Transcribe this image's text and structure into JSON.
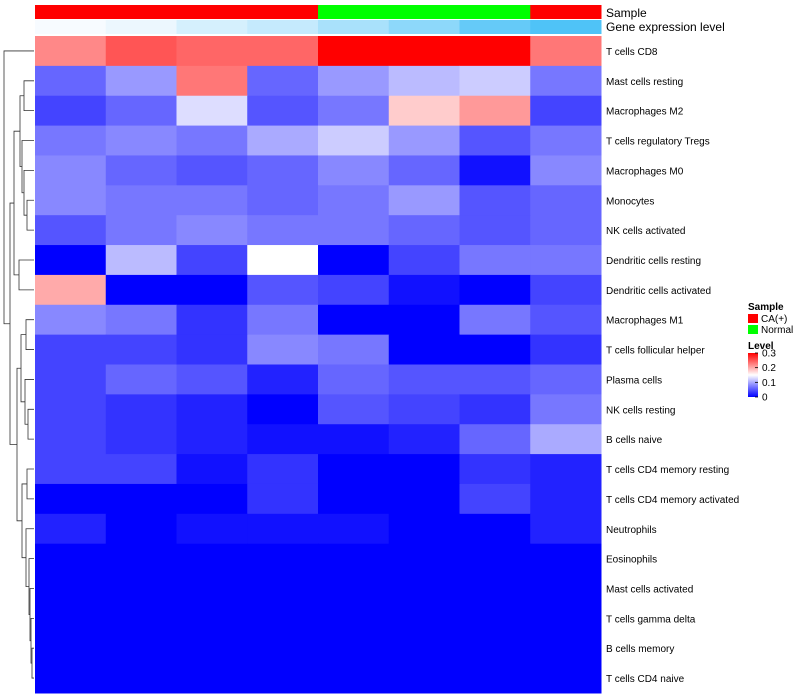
{
  "chart_data": {
    "type": "heatmap",
    "annotation_tracks": [
      {
        "name": "Sample",
        "values": [
          "CA(+)",
          "CA(+)",
          "CA(+)",
          "CA(+)",
          "Normal",
          "Normal",
          "Normal",
          "CA(+)"
        ]
      },
      {
        "name": "Gene expression level",
        "values": [
          0.0,
          0.02,
          0.06,
          0.09,
          0.14,
          0.19,
          0.26,
          0.3
        ]
      }
    ],
    "rows": [
      "T cells CD8",
      "Mast cells resting",
      "Macrophages M2",
      "T cells regulatory  Tregs",
      "Macrophages M0",
      "Monocytes",
      "NK cells activated",
      "Dendritic cells resting",
      "Dendritic cells activated",
      "Macrophages M1",
      "T cells follicular helper",
      "Plasma cells",
      "NK cells resting",
      "B cells naive",
      "T cells CD4 memory resting",
      "T cells CD4 memory activated",
      "Neutrophils",
      "Eosinophils",
      "Mast cells activated",
      "T cells gamma delta",
      "B cells memory",
      "T cells CD4 naive"
    ],
    "values": [
      [
        0.22,
        0.25,
        0.24,
        0.24,
        0.3,
        0.3,
        0.3,
        0.23
      ],
      [
        0.06,
        0.09,
        0.23,
        0.06,
        0.09,
        0.11,
        0.12,
        0.07
      ],
      [
        0.04,
        0.06,
        0.13,
        0.05,
        0.07,
        0.18,
        0.21,
        0.04
      ],
      [
        0.07,
        0.08,
        0.07,
        0.1,
        0.12,
        0.09,
        0.05,
        0.07
      ],
      [
        0.08,
        0.06,
        0.05,
        0.06,
        0.08,
        0.06,
        0.01,
        0.08
      ],
      [
        0.08,
        0.07,
        0.07,
        0.06,
        0.07,
        0.09,
        0.05,
        0.06
      ],
      [
        0.05,
        0.07,
        0.08,
        0.07,
        0.07,
        0.06,
        0.05,
        0.06
      ],
      [
        0.0,
        0.11,
        0.04,
        0.15,
        0.0,
        0.04,
        0.07,
        0.07
      ],
      [
        0.2,
        0.0,
        0.0,
        0.05,
        0.04,
        0.01,
        0.0,
        0.04
      ],
      [
        0.08,
        0.07,
        0.03,
        0.07,
        0.0,
        0.0,
        0.07,
        0.05
      ],
      [
        0.04,
        0.04,
        0.03,
        0.08,
        0.07,
        0.0,
        0.0,
        0.03
      ],
      [
        0.04,
        0.06,
        0.05,
        0.02,
        0.06,
        0.05,
        0.05,
        0.06
      ],
      [
        0.04,
        0.03,
        0.02,
        0.0,
        0.05,
        0.04,
        0.03,
        0.07
      ],
      [
        0.04,
        0.03,
        0.02,
        0.01,
        0.01,
        0.02,
        0.06,
        0.1
      ],
      [
        0.04,
        0.04,
        0.01,
        0.03,
        0.0,
        0.0,
        0.03,
        0.02
      ],
      [
        0.0,
        0.0,
        0.0,
        0.03,
        0.0,
        0.0,
        0.04,
        0.02
      ],
      [
        0.02,
        0.0,
        0.01,
        0.01,
        0.01,
        0.0,
        0.0,
        0.02
      ],
      [
        0.0,
        0.0,
        0.0,
        0.0,
        0.0,
        0.0,
        0.0,
        0.0
      ],
      [
        0.0,
        0.0,
        0.0,
        0.0,
        0.0,
        0.0,
        0.0,
        0.0
      ],
      [
        0.0,
        0.0,
        0.0,
        0.0,
        0.0,
        0.0,
        0.0,
        0.0
      ],
      [
        0.0,
        0.0,
        0.0,
        0.0,
        0.0,
        0.0,
        0.0,
        0.0
      ],
      [
        0.0,
        0.0,
        0.0,
        0.0,
        0.0,
        0.0,
        0.0,
        0.0
      ]
    ],
    "color_scale": {
      "min": 0,
      "mid": 0.15,
      "max": 0.3,
      "low": "#0000ff",
      "midColor": "#ffffff",
      "high": "#ff0000"
    },
    "row_dendrogram": true,
    "legend": {
      "position": "right",
      "sample_title": "Sample",
      "sample_entries": [
        {
          "label": "CA(+)",
          "color": "#ff0000"
        },
        {
          "label": "Normal",
          "color": "#00ff00"
        }
      ],
      "level_title": "Level",
      "level_ticks": [
        "0.3",
        "0.2",
        "0.1",
        "0"
      ],
      "level_tick_values": [
        0.3,
        0.2,
        0.1,
        0
      ]
    },
    "colors": {
      "ca_pos": "#ff0000",
      "normal": "#00ff00",
      "expr_low": "#f7fbff",
      "expr_high": "#4fc3f7"
    }
  }
}
